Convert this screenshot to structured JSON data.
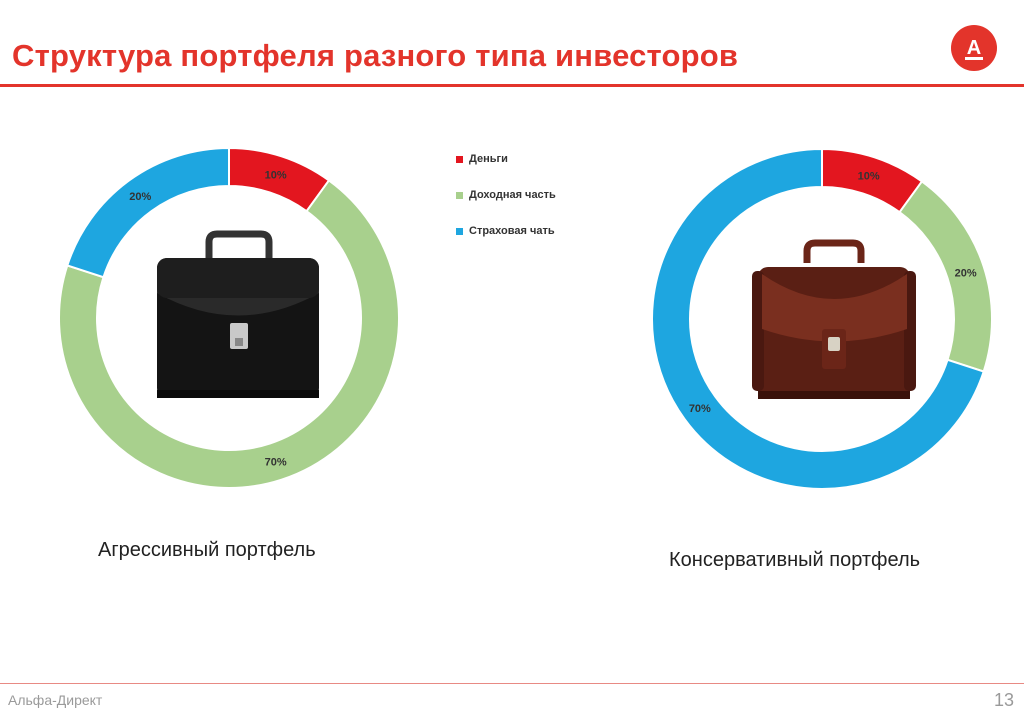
{
  "slide": {
    "title": "Структура портфеля разного типа инвесторов",
    "footer_brand": "Альфа-Директ",
    "page_number": "13",
    "logo_letter": "А",
    "accent_color": "#e3342b"
  },
  "legend": [
    {
      "label": "Деньги",
      "color": "#e3161f"
    },
    {
      "label": "Доходная часть",
      "color": "#a8d08d"
    },
    {
      "label": "Страховая чать",
      "color": "#1ea6e0"
    }
  ],
  "chart_data": [
    {
      "type": "pie",
      "donut": true,
      "caption": "Агрессивный портфель",
      "center_image": "black-briefcase",
      "slices": [
        {
          "name": "Деньги",
          "value": 10,
          "label": "10%",
          "color": "#e3161f"
        },
        {
          "name": "Доходная часть",
          "value": 70,
          "label": "70%",
          "color": "#a8d08d"
        },
        {
          "name": "Страховая чать",
          "value": 20,
          "label": "20%",
          "color": "#1ea6e0"
        }
      ]
    },
    {
      "type": "pie",
      "donut": true,
      "caption": "Консервативный портфель",
      "center_image": "brown-briefcase",
      "slices": [
        {
          "name": "Деньги",
          "value": 10,
          "label": "10%",
          "color": "#e3161f"
        },
        {
          "name": "Доходная часть",
          "value": 20,
          "label": "20%",
          "color": "#a8d08d"
        },
        {
          "name": "Страховая чать",
          "value": 70,
          "label": "70%",
          "color": "#1ea6e0"
        }
      ]
    }
  ]
}
